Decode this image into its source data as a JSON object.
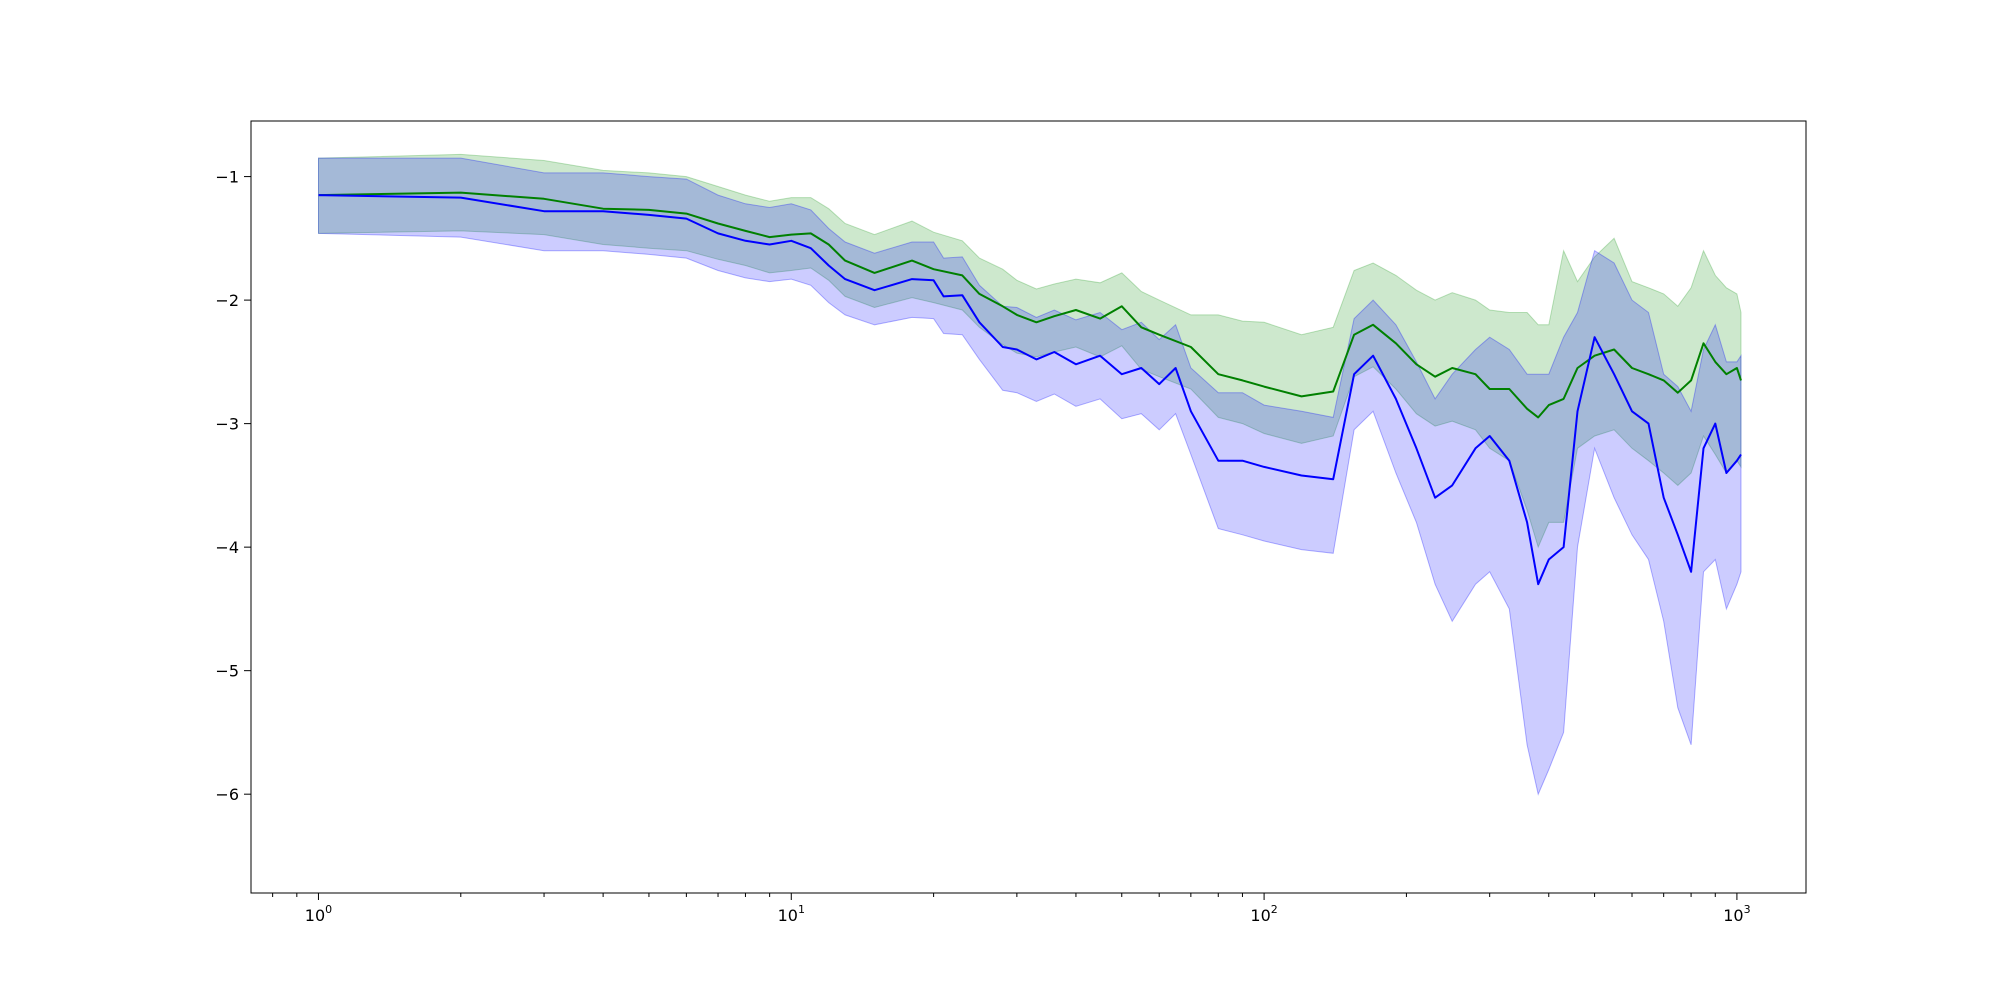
{
  "chart_data": {
    "type": "line",
    "title": "",
    "xlabel": "",
    "ylabel": "",
    "x_scale": "log",
    "xlim": [
      0.72,
      1400
    ],
    "ylim": [
      -6.8,
      -0.55
    ],
    "grid": false,
    "legend": "none",
    "x_ticks": [
      {
        "value": 1,
        "base": "10",
        "exp": "0"
      },
      {
        "value": 10,
        "base": "10",
        "exp": "1"
      },
      {
        "value": 100,
        "base": "10",
        "exp": "2"
      },
      {
        "value": 1000,
        "base": "10",
        "exp": "3"
      }
    ],
    "y_ticks": [
      {
        "value": -1,
        "label": "−1"
      },
      {
        "value": -2,
        "label": "−2"
      },
      {
        "value": -3,
        "label": "−3"
      },
      {
        "value": -4,
        "label": "−4"
      },
      {
        "value": -5,
        "label": "−5"
      },
      {
        "value": -6,
        "label": "−6"
      }
    ],
    "series": [
      {
        "color": "#008000",
        "band_color": "#2ca02c",
        "band_opacity": 0.24,
        "points": [
          [
            1,
            -1.15,
            -1.46,
            -0.85
          ],
          [
            2,
            -1.13,
            -1.44,
            -0.82
          ],
          [
            3,
            -1.18,
            -1.47,
            -0.87
          ],
          [
            4,
            -1.26,
            -1.55,
            -0.95
          ],
          [
            5,
            -1.27,
            -1.58,
            -0.97
          ],
          [
            6,
            -1.3,
            -1.6,
            -1.0
          ],
          [
            7,
            -1.38,
            -1.67,
            -1.08
          ],
          [
            8,
            -1.44,
            -1.72,
            -1.15
          ],
          [
            9,
            -1.49,
            -1.78,
            -1.2
          ],
          [
            10,
            -1.47,
            -1.76,
            -1.17
          ],
          [
            11,
            -1.46,
            -1.74,
            -1.17
          ],
          [
            12,
            -1.55,
            -1.84,
            -1.26
          ],
          [
            13,
            -1.68,
            -1.97,
            -1.38
          ],
          [
            15,
            -1.78,
            -2.06,
            -1.47
          ],
          [
            18,
            -1.68,
            -1.98,
            -1.36
          ],
          [
            20,
            -1.75,
            -2.02,
            -1.45
          ],
          [
            23,
            -1.8,
            -2.08,
            -1.52
          ],
          [
            25,
            -1.95,
            -2.22,
            -1.66
          ],
          [
            28,
            -2.05,
            -2.36,
            -1.75
          ],
          [
            30,
            -2.12,
            -2.43,
            -1.84
          ],
          [
            33,
            -2.18,
            -2.46,
            -1.91
          ],
          [
            36,
            -2.13,
            -2.42,
            -1.87
          ],
          [
            40,
            -2.08,
            -2.38,
            -1.83
          ],
          [
            45,
            -2.15,
            -2.46,
            -1.86
          ],
          [
            50,
            -2.05,
            -2.37,
            -1.78
          ],
          [
            55,
            -2.22,
            -2.56,
            -1.93
          ],
          [
            60,
            -2.28,
            -2.62,
            -2.0
          ],
          [
            70,
            -2.38,
            -2.72,
            -2.12
          ],
          [
            80,
            -2.6,
            -2.95,
            -2.12
          ],
          [
            90,
            -2.65,
            -3.0,
            -2.17
          ],
          [
            100,
            -2.7,
            -3.08,
            -2.18
          ],
          [
            120,
            -2.78,
            -3.16,
            -2.28
          ],
          [
            140,
            -2.74,
            -3.1,
            -2.22
          ],
          [
            155,
            -2.28,
            -2.62,
            -1.76
          ],
          [
            170,
            -2.2,
            -2.54,
            -1.7
          ],
          [
            190,
            -2.35,
            -2.72,
            -1.8
          ],
          [
            210,
            -2.52,
            -2.92,
            -1.92
          ],
          [
            230,
            -2.62,
            -3.02,
            -2.0
          ],
          [
            250,
            -2.55,
            -2.98,
            -1.94
          ],
          [
            280,
            -2.6,
            -3.05,
            -2.0
          ],
          [
            300,
            -2.72,
            -3.2,
            -2.08
          ],
          [
            330,
            -2.72,
            -3.3,
            -2.1
          ],
          [
            360,
            -2.88,
            -3.7,
            -2.1
          ],
          [
            380,
            -2.95,
            -4.0,
            -2.2
          ],
          [
            400,
            -2.85,
            -3.8,
            -2.2
          ],
          [
            430,
            -2.8,
            -3.8,
            -1.6
          ],
          [
            460,
            -2.55,
            -3.2,
            -1.85
          ],
          [
            500,
            -2.45,
            -3.1,
            -1.65
          ],
          [
            550,
            -2.4,
            -3.05,
            -1.5
          ],
          [
            600,
            -2.55,
            -3.2,
            -1.85
          ],
          [
            650,
            -2.6,
            -3.3,
            -1.9
          ],
          [
            700,
            -2.65,
            -3.4,
            -1.95
          ],
          [
            750,
            -2.75,
            -3.5,
            -2.05
          ],
          [
            800,
            -2.65,
            -3.4,
            -1.9
          ],
          [
            850,
            -2.35,
            -3.1,
            -1.6
          ],
          [
            900,
            -2.5,
            -3.25,
            -1.8
          ],
          [
            950,
            -2.6,
            -3.4,
            -1.9
          ],
          [
            1000,
            -2.55,
            -3.3,
            -1.95
          ],
          [
            1020,
            -2.65,
            -3.35,
            -2.1
          ]
        ]
      },
      {
        "color": "#0000ff",
        "band_color": "#0000ff",
        "band_opacity": 0.2,
        "points": [
          [
            1,
            -1.15,
            -1.46,
            -0.85
          ],
          [
            2,
            -1.17,
            -1.49,
            -0.85
          ],
          [
            3,
            -1.28,
            -1.6,
            -0.97
          ],
          [
            4,
            -1.28,
            -1.6,
            -0.97
          ],
          [
            5,
            -1.31,
            -1.63,
            -1.0
          ],
          [
            6,
            -1.34,
            -1.66,
            -1.02
          ],
          [
            7,
            -1.46,
            -1.76,
            -1.15
          ],
          [
            8,
            -1.52,
            -1.82,
            -1.22
          ],
          [
            9,
            -1.55,
            -1.85,
            -1.25
          ],
          [
            10,
            -1.52,
            -1.83,
            -1.22
          ],
          [
            11,
            -1.58,
            -1.88,
            -1.27
          ],
          [
            12,
            -1.72,
            -2.02,
            -1.42
          ],
          [
            13,
            -1.83,
            -2.12,
            -1.53
          ],
          [
            15,
            -1.92,
            -2.2,
            -1.62
          ],
          [
            18,
            -1.83,
            -2.14,
            -1.53
          ],
          [
            20,
            -1.84,
            -2.15,
            -1.53
          ],
          [
            21,
            -1.97,
            -2.27,
            -1.66
          ],
          [
            23,
            -1.96,
            -2.28,
            -1.65
          ],
          [
            25,
            -2.18,
            -2.48,
            -1.88
          ],
          [
            28,
            -2.38,
            -2.73,
            -2.05
          ],
          [
            30,
            -2.4,
            -2.75,
            -2.06
          ],
          [
            33,
            -2.48,
            -2.82,
            -2.14
          ],
          [
            36,
            -2.42,
            -2.76,
            -2.08
          ],
          [
            40,
            -2.52,
            -2.86,
            -2.16
          ],
          [
            45,
            -2.45,
            -2.8,
            -2.1
          ],
          [
            50,
            -2.6,
            -2.96,
            -2.24
          ],
          [
            55,
            -2.55,
            -2.92,
            -2.18
          ],
          [
            60,
            -2.68,
            -3.05,
            -2.32
          ],
          [
            65,
            -2.55,
            -2.92,
            -2.2
          ],
          [
            70,
            -2.9,
            -3.25,
            -2.55
          ],
          [
            80,
            -3.3,
            -3.85,
            -2.75
          ],
          [
            90,
            -3.3,
            -3.9,
            -2.75
          ],
          [
            100,
            -3.35,
            -3.95,
            -2.85
          ],
          [
            120,
            -3.42,
            -4.02,
            -2.9
          ],
          [
            140,
            -3.45,
            -4.05,
            -2.95
          ],
          [
            155,
            -2.6,
            -3.05,
            -2.15
          ],
          [
            170,
            -2.45,
            -2.9,
            -2.0
          ],
          [
            190,
            -2.8,
            -3.4,
            -2.2
          ],
          [
            210,
            -3.2,
            -3.8,
            -2.5
          ],
          [
            230,
            -3.6,
            -4.3,
            -2.8
          ],
          [
            250,
            -3.5,
            -4.6,
            -2.6
          ],
          [
            280,
            -3.2,
            -4.3,
            -2.4
          ],
          [
            300,
            -3.1,
            -4.2,
            -2.3
          ],
          [
            330,
            -3.3,
            -4.5,
            -2.4
          ],
          [
            360,
            -3.8,
            -5.6,
            -2.6
          ],
          [
            380,
            -4.3,
            -6.0,
            -2.6
          ],
          [
            400,
            -4.1,
            -5.8,
            -2.6
          ],
          [
            430,
            -4.0,
            -5.5,
            -2.3
          ],
          [
            460,
            -2.9,
            -4.0,
            -2.1
          ],
          [
            500,
            -2.3,
            -3.2,
            -1.6
          ],
          [
            550,
            -2.6,
            -3.6,
            -1.7
          ],
          [
            600,
            -2.9,
            -3.9,
            -2.0
          ],
          [
            650,
            -3.0,
            -4.1,
            -2.1
          ],
          [
            700,
            -3.6,
            -4.6,
            -2.6
          ],
          [
            750,
            -3.9,
            -5.3,
            -2.7
          ],
          [
            800,
            -4.2,
            -5.6,
            -2.9
          ],
          [
            850,
            -3.2,
            -4.2,
            -2.4
          ],
          [
            900,
            -3.0,
            -4.1,
            -2.2
          ],
          [
            950,
            -3.4,
            -4.5,
            -2.5
          ],
          [
            1000,
            -3.3,
            -4.3,
            -2.5
          ],
          [
            1020,
            -3.25,
            -4.2,
            -2.45
          ]
        ]
      }
    ]
  }
}
